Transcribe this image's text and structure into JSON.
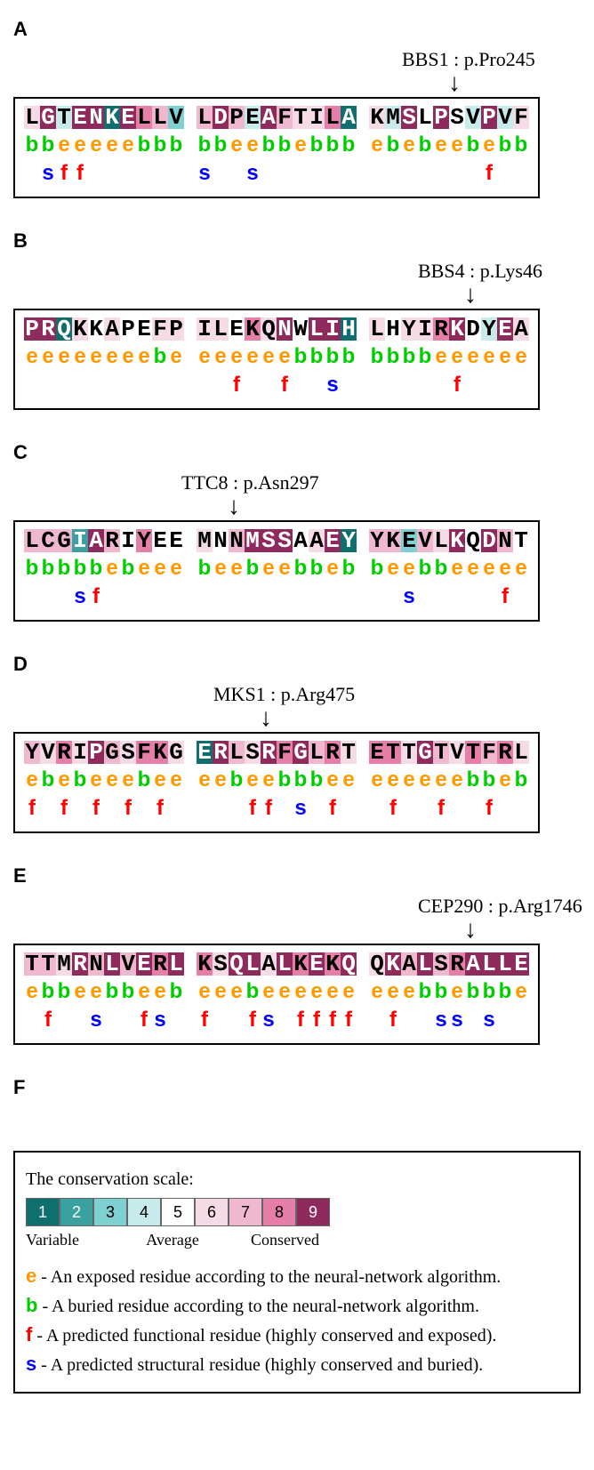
{
  "conservation_colors": {
    "1": {
      "bg": "#0f6e6e",
      "fg": "#ffffff"
    },
    "2": {
      "bg": "#3aa0a0",
      "fg": "#ffffff"
    },
    "3": {
      "bg": "#7fd0d0",
      "fg": "#000000"
    },
    "4": {
      "bg": "#c7eaea",
      "fg": "#000000"
    },
    "5": {
      "bg": "#ffffff",
      "fg": "#000000"
    },
    "6": {
      "bg": "#f5dbe5",
      "fg": "#000000"
    },
    "7": {
      "bg": "#f0b8ce",
      "fg": "#000000"
    },
    "8": {
      "bg": "#e57fa8",
      "fg": "#000000"
    },
    "9": {
      "bg": "#8f2a5c",
      "fg": "#ffffff"
    }
  },
  "panels": [
    {
      "id": "A",
      "mutation_label": "BBS1 : p.Pro245",
      "arrow_col": 26,
      "blocks": [
        {
          "seq": "LGTENKELLV",
          "cons": [
            6,
            9,
            4,
            9,
            9,
            1,
            9,
            8,
            7,
            3
          ],
          "eb": "bbeeeeebbb",
          "fs": " sff      "
        },
        {
          "seq": "LDPEAFTILA",
          "cons": [
            7,
            9,
            7,
            4,
            9,
            7,
            6,
            6,
            8,
            1
          ],
          "eb": "bbeebbebbb",
          "fs": "s  s      "
        },
        {
          "seq": "KMSLPSVPVF",
          "cons": [
            6,
            4,
            9,
            5,
            9,
            5,
            4,
            9,
            4,
            6
          ],
          "eb": "ebebeebebb",
          "fs": "       f  "
        }
      ]
    },
    {
      "id": "B",
      "mutation_label": "BBS4 : p.Lys46",
      "arrow_col": 27,
      "blocks": [
        {
          "seq": "PRQKKAPEFP",
          "cons": [
            9,
            9,
            1,
            6,
            5,
            6,
            5,
            5,
            6,
            6
          ],
          "eb": "eeeeeeeebe",
          "fs": "          "
        },
        {
          "seq": "ILEKQNWLIH",
          "cons": [
            6,
            6,
            5,
            8,
            6,
            9,
            5,
            9,
            9,
            1
          ],
          "eb": "eeeeeebbbb",
          "fs": "  f  f  s "
        },
        {
          "seq": "LHYIRKDYEA",
          "cons": [
            6,
            5,
            6,
            6,
            8,
            9,
            5,
            4,
            9,
            6
          ],
          "eb": "bbbbeeeeee",
          "fs": "     f    "
        }
      ]
    },
    {
      "id": "C",
      "mutation_label": "TTC8 : p.Asn297",
      "arrow_col": 13,
      "blocks": [
        {
          "seq": "LCGIARIYEE",
          "cons": [
            7,
            7,
            7,
            2,
            9,
            7,
            5,
            8,
            5,
            5
          ],
          "eb": "bbbbbebeee",
          "fs": "   sf     "
        },
        {
          "seq": "MNNMSSAAEY",
          "cons": [
            6,
            5,
            7,
            9,
            9,
            9,
            5,
            6,
            9,
            1
          ],
          "eb": "beebeebbeb",
          "fs": "          "
        },
        {
          "seq": "YKEVLKQDNT",
          "cons": [
            7,
            7,
            3,
            7,
            6,
            9,
            5,
            9,
            7,
            5
          ],
          "eb": "beebbeeeee",
          "fs": "  s     f "
        }
      ]
    },
    {
      "id": "D",
      "mutation_label": "MKS1 : p.Arg475",
      "arrow_col": 15,
      "blocks": [
        {
          "seq": "YVRIPGSFKG",
          "cons": [
            7,
            6,
            8,
            6,
            9,
            7,
            6,
            8,
            8,
            6
          ],
          "eb": "ebebeeebee",
          "fs": "f f f f f "
        },
        {
          "seq": "ERLSRFGLRT",
          "cons": [
            1,
            9,
            7,
            6,
            9,
            8,
            9,
            7,
            8,
            6
          ],
          "eb": "eebeebbbee",
          "fs": "   ff s f "
        },
        {
          "seq": "ETTGTVTFRL",
          "cons": [
            8,
            8,
            6,
            9,
            7,
            6,
            8,
            7,
            8,
            6
          ],
          "eb": "eeeeeebbeb",
          "fs": " f  f  f  "
        }
      ]
    },
    {
      "id": "E",
      "mutation_label": "CEP290 : p.Arg1746",
      "arrow_col": 27,
      "blocks": [
        {
          "seq": "TTMRNLVERL",
          "cons": [
            7,
            7,
            6,
            9,
            7,
            9,
            7,
            9,
            8,
            9
          ],
          "eb": "ebbeebbeeb",
          "fs": " f  s  fs "
        },
        {
          "seq": "KSQLALKEKQ",
          "cons": [
            8,
            6,
            9,
            9,
            6,
            9,
            8,
            9,
            8,
            9
          ],
          "eb": "eeebeeeeee",
          "fs": "f  fs ffff"
        },
        {
          "seq": "QKALSRALLE",
          "cons": [
            6,
            9,
            7,
            9,
            7,
            8,
            9,
            9,
            9,
            9
          ],
          "eb": "eeebbebbbe",
          "fs": " f  ss s  "
        }
      ]
    }
  ],
  "legend": {
    "title": "The conservation scale:",
    "scale_labels": [
      "Variable",
      "Average",
      "Conserved"
    ],
    "lines": [
      {
        "sym": "e",
        "color": "#ff9900",
        "text": " - An exposed residue according to the neural-network algorithm."
      },
      {
        "sym": "b",
        "color": "#00cc00",
        "text": " - A buried residue according to the neural-network algorithm."
      },
      {
        "sym": "f",
        "color": "#ff0000",
        "text": " - A predicted functional residue (highly conserved and exposed)."
      },
      {
        "sym": "s",
        "color": "#0000ff",
        "text": " - A predicted structural residue (highly conserved and buried)."
      }
    ]
  }
}
